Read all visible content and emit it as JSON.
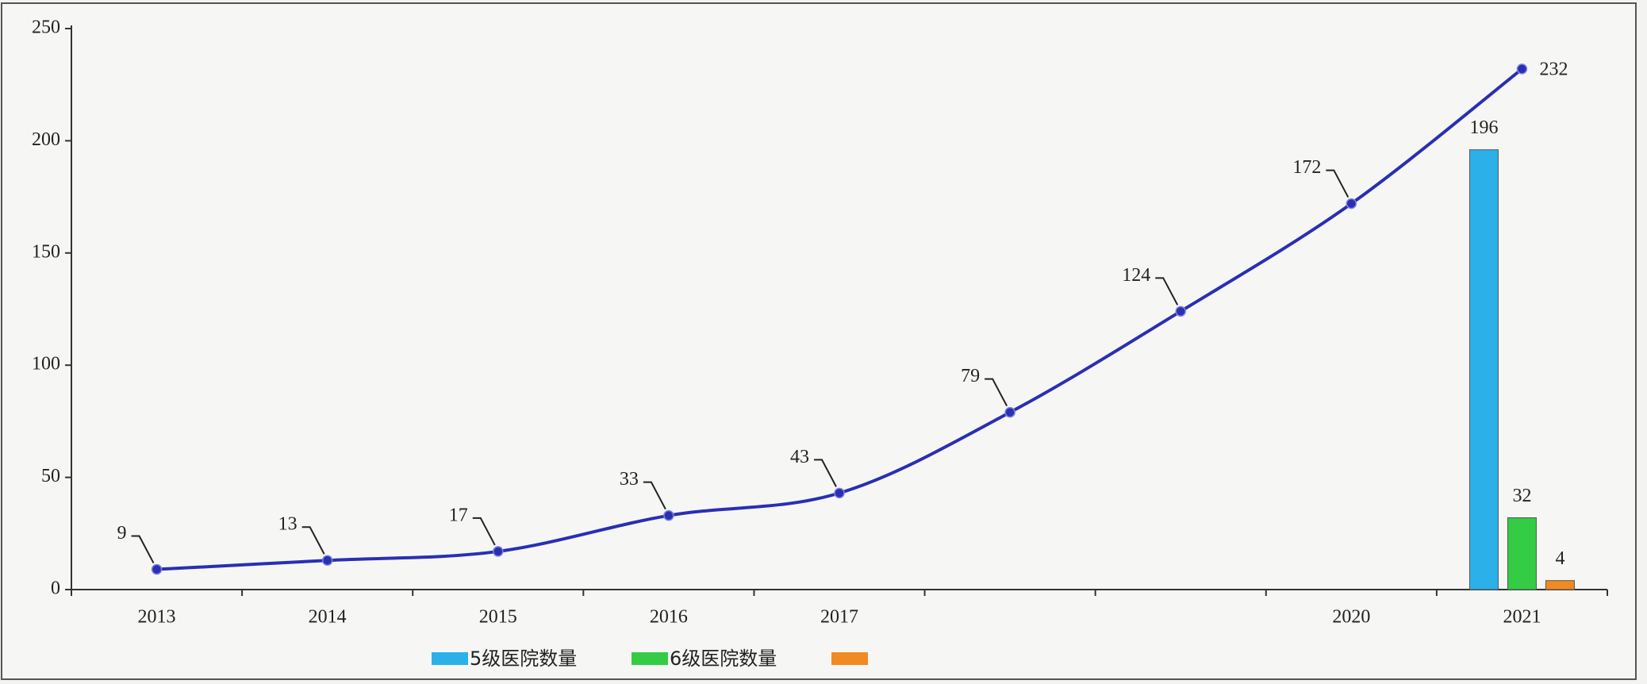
{
  "chart_data": {
    "type": "line-bar",
    "categories": [
      "2013",
      "2014",
      "2015",
      "2016",
      "2017",
      null,
      null,
      "2020",
      "2021"
    ],
    "series": [
      {
        "kind": "line",
        "color": "#2a2fb4",
        "values": [
          9,
          13,
          17,
          33,
          43,
          79,
          124,
          172,
          232
        ]
      },
      {
        "kind": "bar",
        "name": "5级医院数量",
        "color": "#2bb0ea",
        "values": [
          null,
          null,
          null,
          null,
          null,
          null,
          null,
          null,
          196
        ]
      },
      {
        "kind": "bar",
        "name": "6级医院数量",
        "color": "#33cc44",
        "values": [
          null,
          null,
          null,
          null,
          null,
          null,
          null,
          null,
          32
        ]
      },
      {
        "kind": "bar",
        "color": "#f28a22",
        "values": [
          null,
          null,
          null,
          null,
          null,
          null,
          null,
          null,
          4
        ]
      }
    ],
    "ylim": [
      0,
      250
    ],
    "yticks": [
      0,
      50,
      100,
      150,
      200,
      250
    ]
  }
}
